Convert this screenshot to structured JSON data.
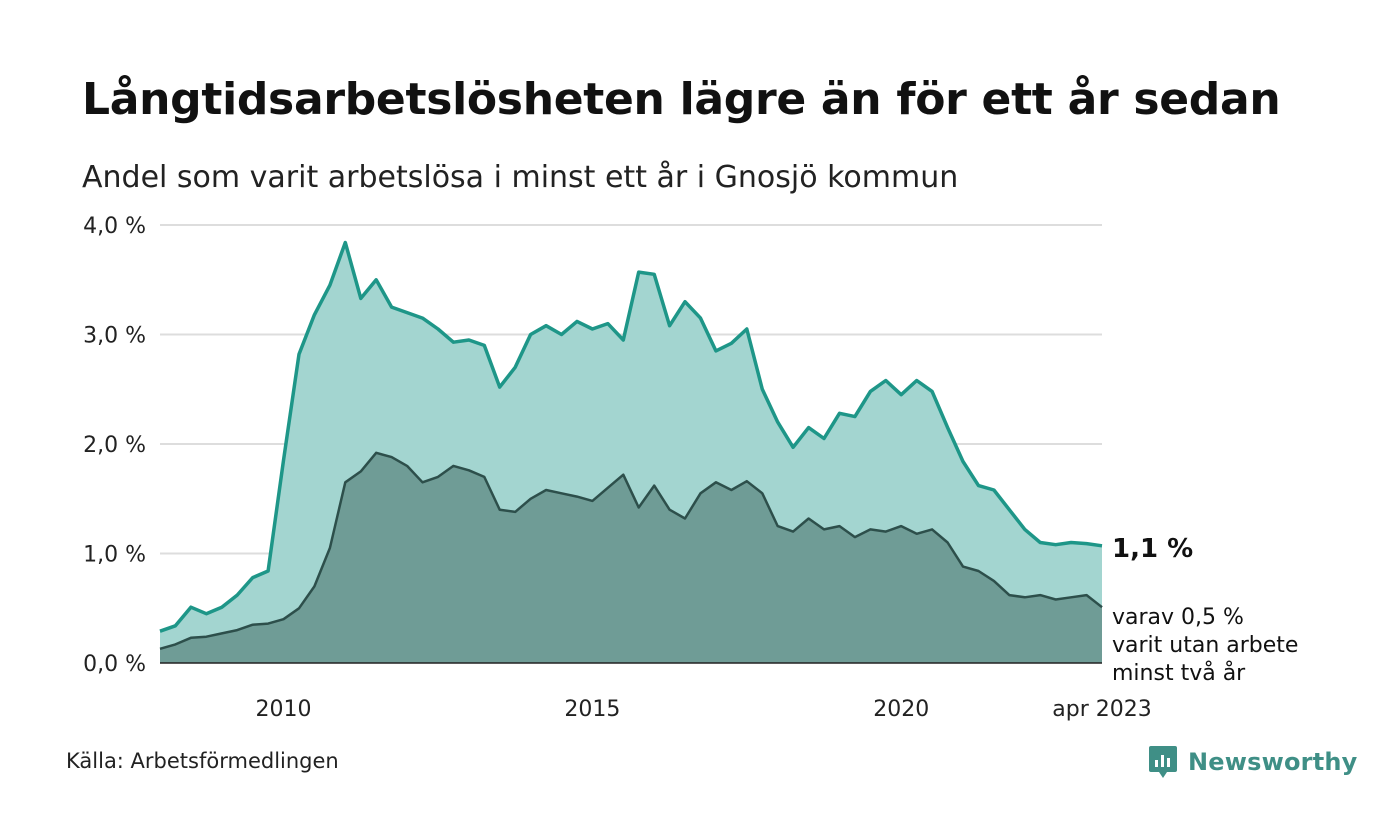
{
  "title": "Långtidsarbetslösheten lägre än för ett år sedan",
  "subtitle": "Andel som varit arbetslösa i minst ett år i Gnosjö kommun",
  "source": "Källa: Arbetsförmedlingen",
  "brand": {
    "name": "Newsworthy",
    "icon": "newsworthy-logo-icon",
    "color": "#3f8f86"
  },
  "chart_data": {
    "type": "area",
    "title": "Långtidsarbetslösheten lägre än för ett år sedan",
    "subtitle": "Andel som varit arbetslösa i minst ett år i Gnosjö kommun",
    "x_range": [
      "2008-01",
      "2023-04"
    ],
    "x_ticks": [
      {
        "x": "2010-01",
        "label": "2010"
      },
      {
        "x": "2015-01",
        "label": "2015"
      },
      {
        "x": "2020-01",
        "label": "2020"
      },
      {
        "x": "2023-04",
        "label": "apr 2023"
      }
    ],
    "ylim": [
      0,
      4
    ],
    "y_ticks": [
      {
        "value": 0,
        "label": "0,0 %"
      },
      {
        "value": 1,
        "label": "1,0 %"
      },
      {
        "value": 2,
        "label": "2,0 %"
      },
      {
        "value": 3,
        "label": "3,0 %"
      },
      {
        "value": 4,
        "label": "4,0 %"
      }
    ],
    "grid": true,
    "end_labels": {
      "total": "1,1 %",
      "two_years": [
        "varav 0,5 %",
        "varit utan arbete",
        "minst två år"
      ]
    },
    "series": [
      {
        "key": "min1",
        "color": "#1e9688",
        "fill": "#a3d5d0",
        "points": [
          [
            "2008-01",
            0.29
          ],
          [
            "2008-04",
            0.34
          ],
          [
            "2008-07",
            0.51
          ],
          [
            "2008-10",
            0.45
          ],
          [
            "2009-01",
            0.51
          ],
          [
            "2009-04",
            0.62
          ],
          [
            "2009-07",
            0.78
          ],
          [
            "2009-10",
            0.84
          ],
          [
            "2010-01",
            1.85
          ],
          [
            "2010-04",
            2.82
          ],
          [
            "2010-07",
            3.18
          ],
          [
            "2010-10",
            3.45
          ],
          [
            "2011-01",
            3.84
          ],
          [
            "2011-04",
            3.33
          ],
          [
            "2011-07",
            3.5
          ],
          [
            "2011-10",
            3.25
          ],
          [
            "2012-01",
            3.2
          ],
          [
            "2012-04",
            3.15
          ],
          [
            "2012-07",
            3.05
          ],
          [
            "2012-10",
            2.93
          ],
          [
            "2013-01",
            2.95
          ],
          [
            "2013-04",
            2.9
          ],
          [
            "2013-07",
            2.52
          ],
          [
            "2013-10",
            2.7
          ],
          [
            "2014-01",
            3.0
          ],
          [
            "2014-04",
            3.08
          ],
          [
            "2014-07",
            3.0
          ],
          [
            "2014-10",
            3.12
          ],
          [
            "2015-01",
            3.05
          ],
          [
            "2015-04",
            3.1
          ],
          [
            "2015-07",
            2.95
          ],
          [
            "2015-10",
            3.57
          ],
          [
            "2016-01",
            3.55
          ],
          [
            "2016-04",
            3.08
          ],
          [
            "2016-07",
            3.3
          ],
          [
            "2016-10",
            3.15
          ],
          [
            "2017-01",
            2.85
          ],
          [
            "2017-04",
            2.92
          ],
          [
            "2017-07",
            3.05
          ],
          [
            "2017-10",
            2.5
          ],
          [
            "2018-01",
            2.2
          ],
          [
            "2018-04",
            1.97
          ],
          [
            "2018-07",
            2.15
          ],
          [
            "2018-10",
            2.05
          ],
          [
            "2019-01",
            2.28
          ],
          [
            "2019-04",
            2.25
          ],
          [
            "2019-07",
            2.48
          ],
          [
            "2019-10",
            2.58
          ],
          [
            "2020-01",
            2.45
          ],
          [
            "2020-04",
            2.58
          ],
          [
            "2020-07",
            2.48
          ],
          [
            "2020-10",
            2.15
          ],
          [
            "2021-01",
            1.84
          ],
          [
            "2021-04",
            1.62
          ],
          [
            "2021-07",
            1.58
          ],
          [
            "2021-10",
            1.4
          ],
          [
            "2022-01",
            1.22
          ],
          [
            "2022-04",
            1.1
          ],
          [
            "2022-07",
            1.08
          ],
          [
            "2022-10",
            1.1
          ],
          [
            "2023-01",
            1.09
          ],
          [
            "2023-04",
            1.07
          ]
        ]
      },
      {
        "key": "min2",
        "color": "#2d4f4b",
        "fill": "#6f9c96",
        "points": [
          [
            "2008-01",
            0.13
          ],
          [
            "2008-04",
            0.17
          ],
          [
            "2008-07",
            0.23
          ],
          [
            "2008-10",
            0.24
          ],
          [
            "2009-01",
            0.27
          ],
          [
            "2009-04",
            0.3
          ],
          [
            "2009-07",
            0.35
          ],
          [
            "2009-10",
            0.36
          ],
          [
            "2010-01",
            0.4
          ],
          [
            "2010-04",
            0.5
          ],
          [
            "2010-07",
            0.7
          ],
          [
            "2010-10",
            1.05
          ],
          [
            "2011-01",
            1.65
          ],
          [
            "2011-04",
            1.75
          ],
          [
            "2011-07",
            1.92
          ],
          [
            "2011-10",
            1.88
          ],
          [
            "2012-01",
            1.8
          ],
          [
            "2012-04",
            1.65
          ],
          [
            "2012-07",
            1.7
          ],
          [
            "2012-10",
            1.8
          ],
          [
            "2013-01",
            1.76
          ],
          [
            "2013-04",
            1.7
          ],
          [
            "2013-07",
            1.4
          ],
          [
            "2013-10",
            1.38
          ],
          [
            "2014-01",
            1.5
          ],
          [
            "2014-04",
            1.58
          ],
          [
            "2014-07",
            1.55
          ],
          [
            "2014-10",
            1.52
          ],
          [
            "2015-01",
            1.48
          ],
          [
            "2015-04",
            1.6
          ],
          [
            "2015-07",
            1.72
          ],
          [
            "2015-10",
            1.42
          ],
          [
            "2016-01",
            1.62
          ],
          [
            "2016-04",
            1.4
          ],
          [
            "2016-07",
            1.32
          ],
          [
            "2016-10",
            1.55
          ],
          [
            "2017-01",
            1.65
          ],
          [
            "2017-04",
            1.58
          ],
          [
            "2017-07",
            1.66
          ],
          [
            "2017-10",
            1.55
          ],
          [
            "2018-01",
            1.25
          ],
          [
            "2018-04",
            1.2
          ],
          [
            "2018-07",
            1.32
          ],
          [
            "2018-10",
            1.22
          ],
          [
            "2019-01",
            1.25
          ],
          [
            "2019-04",
            1.15
          ],
          [
            "2019-07",
            1.22
          ],
          [
            "2019-10",
            1.2
          ],
          [
            "2020-01",
            1.25
          ],
          [
            "2020-04",
            1.18
          ],
          [
            "2020-07",
            1.22
          ],
          [
            "2020-10",
            1.1
          ],
          [
            "2021-01",
            0.88
          ],
          [
            "2021-04",
            0.84
          ],
          [
            "2021-07",
            0.75
          ],
          [
            "2021-10",
            0.62
          ],
          [
            "2022-01",
            0.6
          ],
          [
            "2022-04",
            0.62
          ],
          [
            "2022-07",
            0.58
          ],
          [
            "2022-10",
            0.6
          ],
          [
            "2023-01",
            0.62
          ],
          [
            "2023-04",
            0.51
          ]
        ]
      }
    ]
  }
}
